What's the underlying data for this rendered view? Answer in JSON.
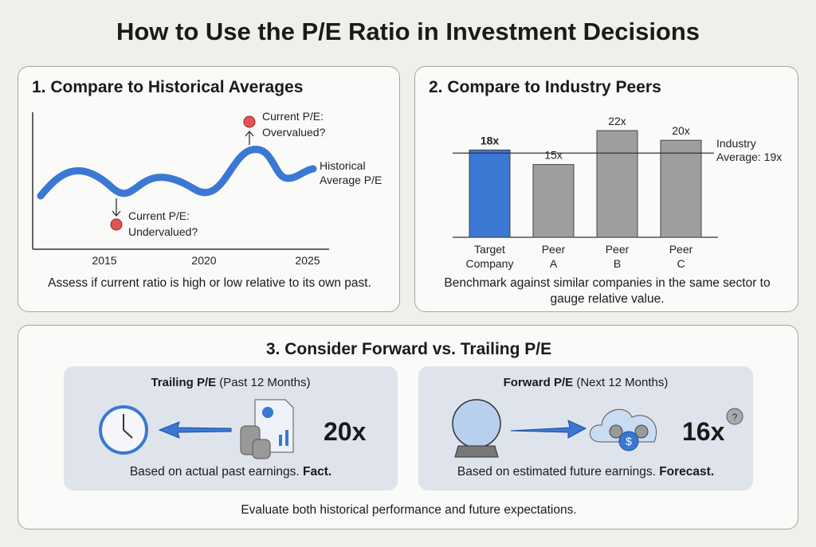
{
  "title": "How to Use the P/E Ratio in Investment Decisions",
  "panel1": {
    "heading": "1. Compare to Historical Averages",
    "high_label": [
      "Current P/E:",
      "Overvalued?"
    ],
    "low_label": [
      "Current P/E:",
      "Undervalued?"
    ],
    "avg_label": [
      "Historical",
      "Average P/E"
    ],
    "years": [
      "2015",
      "2020",
      "2025"
    ],
    "caption": "Assess if current ratio is high or low relative to its own past."
  },
  "panel2": {
    "heading": "2. Compare to Industry Peers",
    "avg_label": [
      "Industry",
      "Average: 19x"
    ],
    "caption": "Benchmark against similar companies in the same sector to gauge relative value.",
    "chart_data": {
      "type": "bar",
      "categories": [
        "Target Company",
        "Peer A",
        "Peer B",
        "Peer C"
      ],
      "values": [
        18,
        15,
        22,
        20
      ],
      "value_labels": [
        "18x",
        "15x",
        "22x",
        "20x"
      ],
      "reference_line": 19,
      "colors": [
        "#3a78d4",
        "#9e9e9e",
        "#9e9e9e",
        "#9e9e9e"
      ]
    }
  },
  "panel3": {
    "heading": "3. Consider Forward vs. Trailing P/E",
    "trailing": {
      "title_bold": "Trailing P/E",
      "title_rest": " (Past 12 Months)",
      "value": "20x",
      "caption": "Based on actual past earnings. ",
      "caption_bold": "Fact."
    },
    "forward": {
      "title_bold": "Forward P/E",
      "title_rest": " (Next 12 Months)",
      "value": "16x",
      "caption": "Based on estimated future earnings. ",
      "caption_bold": "Forecast."
    },
    "footer": "Evaluate both historical performance and future expectations."
  },
  "colors": {
    "accent": "#3a78d4",
    "red": "#e05555",
    "gray_bar": "#9e9e9e"
  }
}
